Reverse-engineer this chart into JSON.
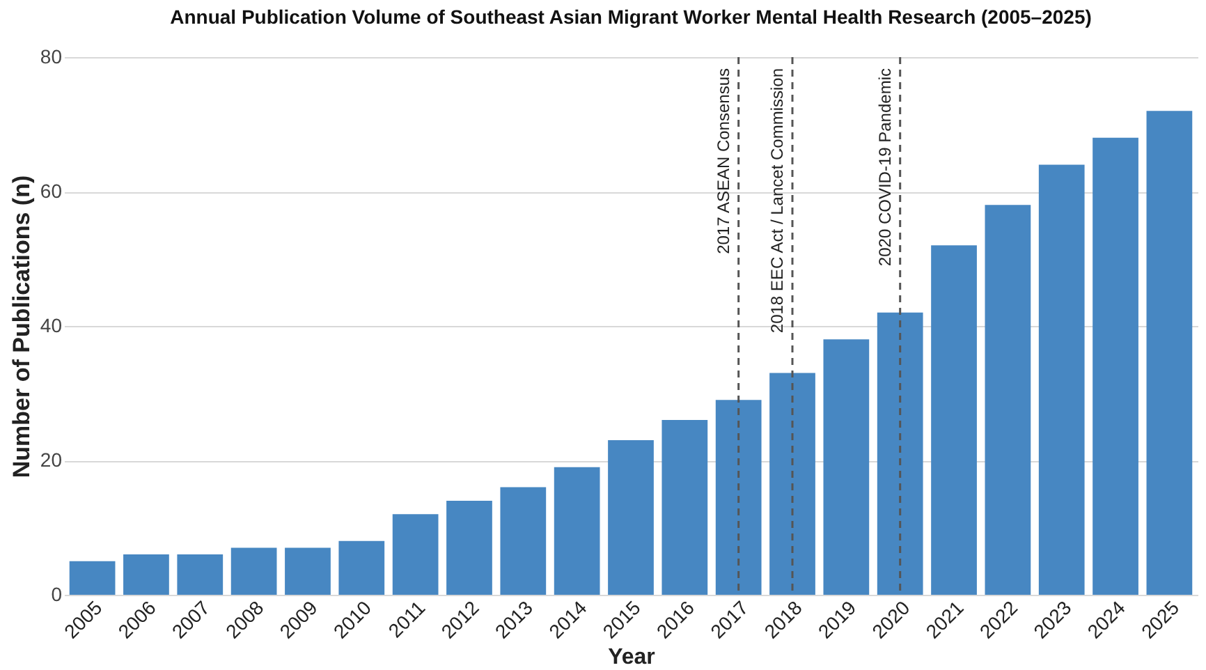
{
  "chart_data": {
    "type": "bar",
    "title": "Annual Publication Volume of Southeast Asian Migrant Worker Mental Health Research (2005–2025)",
    "xlabel": "Year",
    "ylabel": "Number of Publications (n)",
    "categories": [
      "2005",
      "2006",
      "2007",
      "2008",
      "2009",
      "2010",
      "2011",
      "2012",
      "2013",
      "2014",
      "2015",
      "2016",
      "2017",
      "2018",
      "2019",
      "2020",
      "2021",
      "2022",
      "2023",
      "2024",
      "2025"
    ],
    "values": [
      5,
      6,
      6,
      7,
      7,
      8,
      12,
      14,
      16,
      19,
      23,
      26,
      29,
      33,
      38,
      42,
      52,
      58,
      64,
      68,
      72
    ],
    "color": "#4787c2",
    "ylim": [
      0,
      80
    ],
    "yticks": [
      0,
      20,
      40,
      60,
      80
    ],
    "grid": "y",
    "ref_lines": [
      {
        "axis": "x",
        "value": "2017",
        "label": "2017 ASEAN Consensus",
        "line_style": "dashed",
        "color": "#555555"
      },
      {
        "axis": "x",
        "value": "2018",
        "label": "2018 EEC Act / Lancet Commission",
        "line_style": "dashed",
        "color": "#555555"
      },
      {
        "axis": "x",
        "value": "2020",
        "label": "2020 COVID-19 Pandemic",
        "line_style": "dashed",
        "color": "#555555"
      }
    ]
  }
}
